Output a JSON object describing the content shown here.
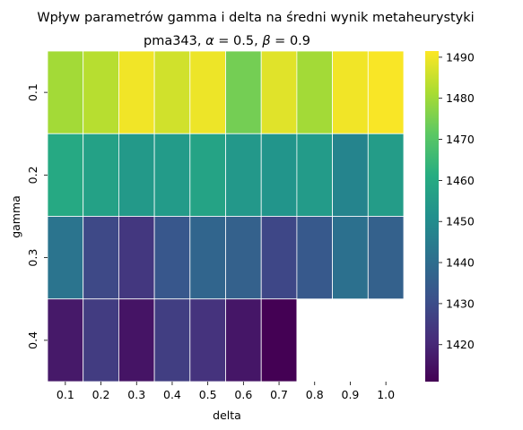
{
  "chart_data": {
    "type": "heatmap",
    "title": "Wpływ parametrów gamma i delta na średni wynik metaheurystyki",
    "subtitle": {
      "prefix": "pma343, ",
      "alpha_symbol": "α",
      "alpha_value": " = 0.5, ",
      "beta_symbol": "β",
      "beta_value": " = 0.9"
    },
    "xlabel": "delta",
    "ylabel": "gamma",
    "x_categories": [
      "0.1",
      "0.2",
      "0.3",
      "0.4",
      "0.5",
      "0.6",
      "0.7",
      "0.8",
      "0.9",
      "1.0"
    ],
    "y_categories": [
      "0.1",
      "0.2",
      "0.3",
      "0.4"
    ],
    "values": [
      [
        1480.5,
        1483.0,
        1490.0,
        1486.0,
        1489.5,
        1474.5,
        1488.0,
        1480.5,
        1490.0,
        1491.0
      ],
      [
        1460.0,
        1457.0,
        1454.5,
        1455.0,
        1458.0,
        1454.0,
        1453.0,
        1455.0,
        1447.5,
        1455.5
      ],
      [
        1442.0,
        1429.0,
        1424.0,
        1433.0,
        1437.5,
        1436.0,
        1428.5,
        1433.5,
        1441.0,
        1436.0
      ],
      [
        1416.5,
        1425.5,
        1415.5,
        1426.0,
        1423.0,
        1416.0,
        1411.0,
        null,
        null,
        null
      ]
    ],
    "colormap": "viridis",
    "colorbar": {
      "vmin": 1411.0,
      "vmax": 1491.5,
      "ticks": [
        "1420",
        "1430",
        "1440",
        "1450",
        "1460",
        "1470",
        "1480",
        "1490"
      ]
    },
    "cell_edge_color": "#ffffff",
    "grid": false,
    "legend": "colorbar-right"
  }
}
